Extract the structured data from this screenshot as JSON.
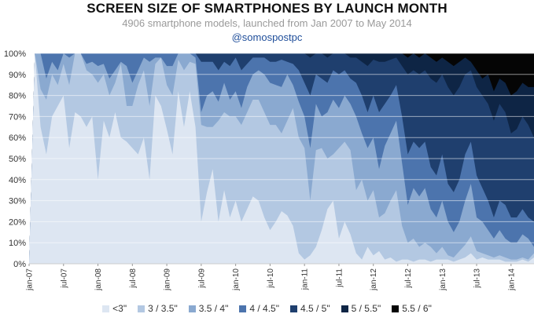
{
  "header": {
    "title": "SCREEN SIZE OF SMARTPHONES BY LAUNCH MONTH",
    "subtitle": "4906 smartphone models, launched from Jan 2007 to May 2014",
    "handle": "@somospostpc"
  },
  "chart_data": {
    "type": "area",
    "stacked": true,
    "normalized": true,
    "title": "SCREEN SIZE OF SMARTPHONES BY LAUNCH MONTH",
    "subtitle": "4906 smartphone models, launched from Jan 2007 to May 2014",
    "ylim": [
      0,
      100
    ],
    "y_ticks": [
      "0%",
      "10%",
      "20%",
      "30%",
      "40%",
      "50%",
      "60%",
      "70%",
      "80%",
      "90%",
      "100%"
    ],
    "x_tick_labels": [
      "jan-07",
      "jul-07",
      "jan-08",
      "jul-08",
      "jan-09",
      "jul-09",
      "jan-10",
      "jul-10",
      "jan-11",
      "jul-11",
      "jan-12",
      "jul-12",
      "jan-13",
      "jul-13",
      "jan-14"
    ],
    "x_start": "jan-07",
    "x_end": "may-14",
    "grid": true,
    "legend_position": "bottom",
    "series": [
      {
        "name": "<3\"",
        "color": "#dde6f2"
      },
      {
        "name": "3 / 3.5\"",
        "color": "#b3c8e2"
      },
      {
        "name": "3.5 / 4\"",
        "color": "#8aa9d0"
      },
      {
        "name": "4 / 4.5\"",
        "color": "#4c74ad"
      },
      {
        "name": "4.5 / 5\"",
        "color": "#1f3f6e"
      },
      {
        "name": "5 / 5.5\"",
        "color": "#0e2545"
      },
      {
        "name": "5.5 / 6\"",
        "color": "#050505"
      }
    ],
    "cumulative_tops": [
      [
        0,
        100,
        65,
        52,
        70,
        75,
        80,
        55,
        72,
        70,
        65,
        70,
        40,
        68,
        60,
        72,
        60,
        58,
        55,
        52,
        60,
        40,
        80,
        75,
        64,
        52,
        82,
        65,
        82,
        65,
        20,
        34,
        45,
        20,
        35,
        22,
        30,
        20,
        26,
        32,
        30,
        22,
        16,
        20,
        25,
        23,
        18,
        5,
        2,
        4,
        8,
        16,
        26,
        30,
        12,
        20,
        14,
        5,
        2,
        8,
        4,
        6,
        2,
        3,
        1,
        2,
        2,
        1,
        2,
        2,
        1,
        2,
        2,
        2,
        1,
        2,
        3,
        5,
        2,
        3,
        2,
        2,
        2,
        1,
        1,
        1,
        2,
        1,
        3
      ],
      [
        0,
        100,
        83,
        78,
        90,
        85,
        95,
        85,
        100,
        100,
        92,
        90,
        86,
        90,
        80,
        86,
        95,
        75,
        75,
        85,
        92,
        75,
        95,
        98,
        85,
        80,
        97,
        92,
        96,
        95,
        66,
        65,
        65,
        68,
        72,
        70,
        70,
        66,
        72,
        78,
        78,
        72,
        66,
        66,
        62,
        68,
        74,
        60,
        55,
        30,
        54,
        55,
        50,
        52,
        55,
        58,
        54,
        35,
        40,
        30,
        35,
        22,
        24,
        30,
        35,
        18,
        10,
        12,
        8,
        10,
        8,
        5,
        8,
        4,
        3,
        6,
        9,
        13,
        6,
        5,
        4,
        3,
        4,
        3,
        2,
        2,
        3,
        2,
        5
      ],
      [
        0,
        100,
        100,
        88,
        96,
        92,
        100,
        98,
        100,
        100,
        95,
        96,
        94,
        95,
        88,
        92,
        96,
        94,
        86,
        92,
        98,
        96,
        98,
        98,
        94,
        94,
        100,
        100,
        100,
        98,
        72,
        80,
        82,
        77,
        86,
        78,
        82,
        74,
        84,
        90,
        92,
        90,
        86,
        85,
        84,
        90,
        85,
        77,
        70,
        55,
        76,
        70,
        72,
        78,
        74,
        80,
        76,
        70,
        62,
        55,
        60,
        45,
        56,
        62,
        68,
        48,
        28,
        36,
        32,
        36,
        26,
        22,
        30,
        20,
        15,
        20,
        30,
        38,
        22,
        20,
        16,
        12,
        16,
        12,
        10,
        10,
        14,
        12,
        8
      ],
      [
        0,
        100,
        100,
        100,
        100,
        100,
        100,
        100,
        100,
        100,
        100,
        100,
        100,
        100,
        100,
        100,
        100,
        100,
        100,
        100,
        100,
        100,
        100,
        100,
        100,
        100,
        100,
        100,
        100,
        100,
        96,
        96,
        96,
        92,
        96,
        94,
        98,
        92,
        95,
        98,
        98,
        98,
        96,
        96,
        97,
        96,
        95,
        92,
        86,
        80,
        90,
        88,
        86,
        92,
        90,
        92,
        88,
        86,
        80,
        72,
        80,
        72,
        76,
        80,
        85,
        70,
        52,
        58,
        55,
        58,
        46,
        42,
        52,
        38,
        34,
        40,
        52,
        58,
        42,
        36,
        30,
        22,
        30,
        28,
        22,
        22,
        26,
        22,
        20
      ],
      [
        0,
        100,
        100,
        100,
        100,
        100,
        100,
        100,
        100,
        100,
        100,
        100,
        100,
        100,
        100,
        100,
        100,
        100,
        100,
        100,
        100,
        100,
        100,
        100,
        100,
        100,
        100,
        100,
        100,
        100,
        100,
        100,
        100,
        100,
        100,
        100,
        100,
        100,
        100,
        100,
        100,
        100,
        100,
        100,
        100,
        100,
        100,
        100,
        100,
        98,
        100,
        100,
        98,
        100,
        100,
        100,
        98,
        98,
        96,
        94,
        97,
        96,
        96,
        97,
        98,
        94,
        90,
        92,
        90,
        92,
        88,
        86,
        90,
        84,
        80,
        84,
        90,
        92,
        84,
        80,
        76,
        68,
        76,
        72,
        62,
        64,
        70,
        66,
        60
      ],
      [
        0,
        100,
        100,
        100,
        100,
        100,
        100,
        100,
        100,
        100,
        100,
        100,
        100,
        100,
        100,
        100,
        100,
        100,
        100,
        100,
        100,
        100,
        100,
        100,
        100,
        100,
        100,
        100,
        100,
        100,
        100,
        100,
        100,
        100,
        100,
        100,
        100,
        100,
        100,
        100,
        100,
        100,
        100,
        100,
        100,
        100,
        100,
        100,
        100,
        100,
        100,
        100,
        100,
        100,
        100,
        100,
        100,
        100,
        100,
        100,
        100,
        100,
        100,
        100,
        100,
        100,
        98,
        100,
        98,
        100,
        98,
        96,
        98,
        96,
        94,
        96,
        98,
        96,
        92,
        88,
        90,
        82,
        88,
        86,
        80,
        82,
        86,
        84,
        84
      ],
      [
        0,
        100,
        100,
        100,
        100,
        100,
        100,
        100,
        100,
        100,
        100,
        100,
        100,
        100,
        100,
        100,
        100,
        100,
        100,
        100,
        100,
        100,
        100,
        100,
        100,
        100,
        100,
        100,
        100,
        100,
        100,
        100,
        100,
        100,
        100,
        100,
        100,
        100,
        100,
        100,
        100,
        100,
        100,
        100,
        100,
        100,
        100,
        100,
        100,
        100,
        100,
        100,
        100,
        100,
        100,
        100,
        100,
        100,
        100,
        100,
        100,
        100,
        100,
        100,
        100,
        100,
        100,
        100,
        100,
        100,
        100,
        100,
        100,
        100,
        100,
        100,
        100,
        100,
        100,
        100,
        100,
        100,
        100,
        100,
        100,
        100,
        100,
        100,
        100
      ]
    ]
  }
}
